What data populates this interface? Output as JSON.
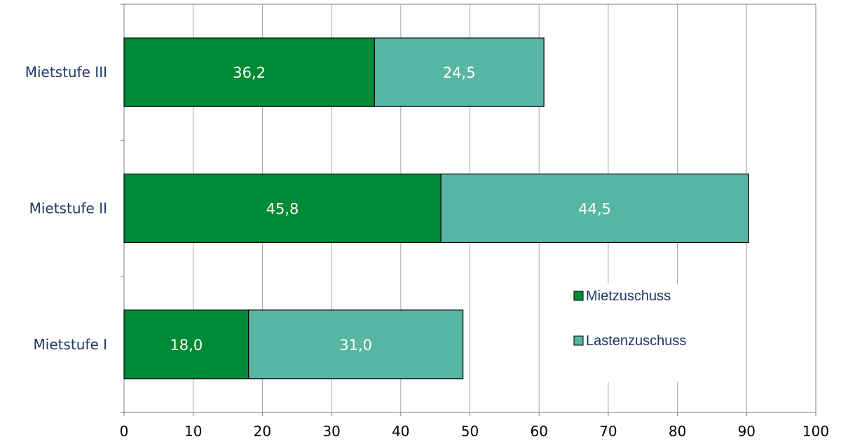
{
  "chart_data": {
    "type": "bar",
    "orientation": "horizontal",
    "stacked": true,
    "categories": [
      "Mietstufe III",
      "Mietstufe II",
      "Mietstufe I"
    ],
    "series": [
      {
        "name": "Mietzuschuss",
        "values": [
          36.2,
          45.8,
          18.0
        ],
        "labels": [
          "36,2",
          "45,8",
          "18,0"
        ],
        "color": "#008a35"
      },
      {
        "name": "Lastenzuschuss",
        "values": [
          24.5,
          44.5,
          31.0
        ],
        "labels": [
          "24,5",
          "44,5",
          "31,0"
        ],
        "color": "#57b5a3"
      }
    ],
    "xlim": [
      0,
      100
    ],
    "xticks": [
      0,
      10,
      20,
      30,
      40,
      50,
      60,
      70,
      80,
      90,
      100
    ],
    "grid": "vertical",
    "legend_position": "bottom-right-inside",
    "title": "",
    "xlabel": "",
    "ylabel": ""
  }
}
